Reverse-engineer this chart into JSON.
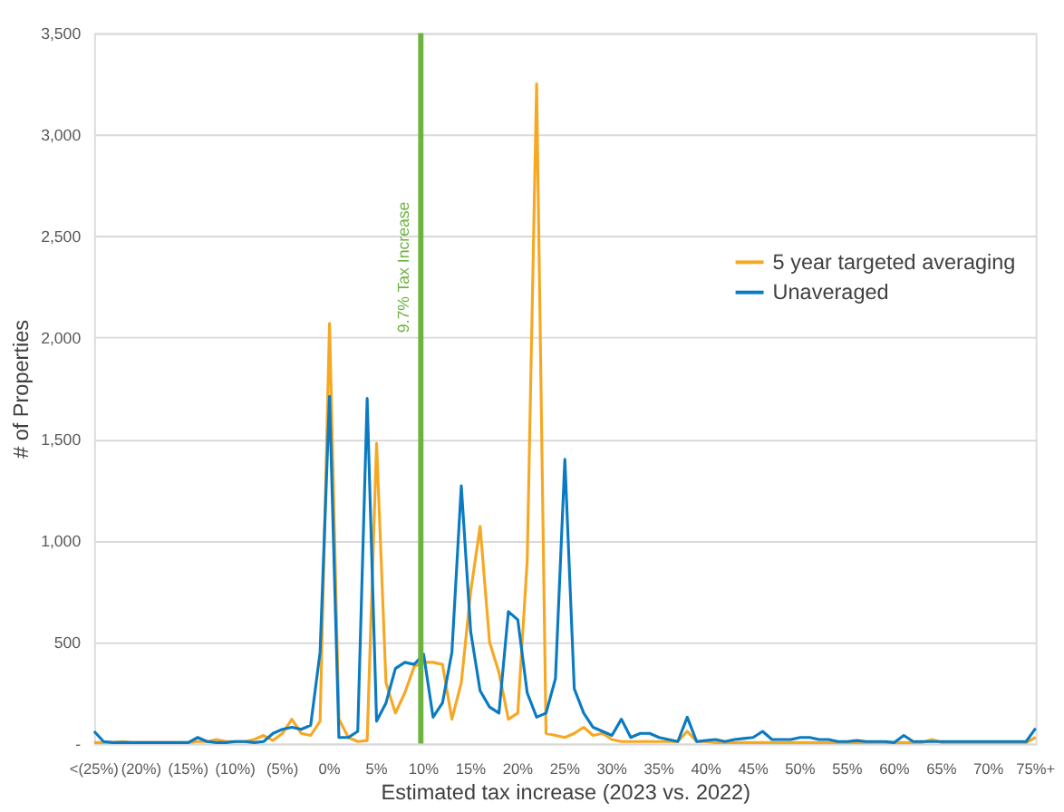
{
  "chart_data": {
    "type": "line",
    "xlabel": "Estimated tax increase (2023 vs. 2022)",
    "ylabel": "# of Properties",
    "x": [
      -25,
      -24,
      -23,
      -22,
      -21,
      -20,
      -19,
      -18,
      -17,
      -16,
      -15,
      -14,
      -13,
      -12,
      -11,
      -10,
      -9,
      -8,
      -7,
      -6,
      -5,
      -4,
      -3,
      -2,
      -1,
      0,
      1,
      2,
      3,
      4,
      5,
      6,
      7,
      8,
      9,
      10,
      11,
      12,
      13,
      14,
      15,
      16,
      17,
      18,
      19,
      20,
      21,
      22,
      23,
      24,
      25,
      26,
      27,
      28,
      29,
      30,
      31,
      32,
      33,
      34,
      35,
      36,
      37,
      38,
      39,
      40,
      41,
      42,
      43,
      44,
      45,
      46,
      47,
      48,
      49,
      50,
      51,
      52,
      53,
      54,
      55,
      56,
      57,
      58,
      59,
      60,
      61,
      62,
      63,
      64,
      65,
      66,
      67,
      68,
      69,
      70,
      71,
      72,
      73,
      74,
      75
    ],
    "series": [
      {
        "name": "5 year targeted averaging",
        "color": "#f7a823",
        "values": [
          5,
          5,
          5,
          10,
          5,
          5,
          5,
          5,
          5,
          5,
          5,
          10,
          10,
          20,
          10,
          10,
          10,
          20,
          40,
          15,
          50,
          120,
          50,
          40,
          110,
          2070,
          120,
          30,
          10,
          15,
          1480,
          300,
          150,
          250,
          380,
          400,
          400,
          390,
          120,
          300,
          750,
          1070,
          500,
          350,
          120,
          150,
          900,
          3250,
          50,
          40,
          30,
          50,
          80,
          40,
          50,
          20,
          10,
          10,
          10,
          10,
          10,
          10,
          10,
          60,
          10,
          10,
          5,
          5,
          5,
          5,
          5,
          5,
          5,
          5,
          5,
          5,
          5,
          5,
          5,
          5,
          5,
          5,
          5,
          5,
          5,
          5,
          5,
          5,
          5,
          20,
          5,
          5,
          5,
          5,
          5,
          5,
          5,
          5,
          5,
          5,
          30
        ]
      },
      {
        "name": "Unaveraged",
        "color": "#0a7bc2",
        "values": [
          60,
          10,
          5,
          5,
          5,
          5,
          5,
          5,
          5,
          5,
          5,
          30,
          10,
          5,
          5,
          10,
          10,
          5,
          10,
          50,
          70,
          80,
          70,
          90,
          450,
          1710,
          30,
          30,
          60,
          1700,
          110,
          200,
          370,
          400,
          390,
          440,
          130,
          200,
          450,
          1270,
          550,
          260,
          180,
          150,
          650,
          610,
          250,
          130,
          150,
          320,
          1400,
          270,
          150,
          80,
          60,
          40,
          120,
          30,
          50,
          50,
          30,
          20,
          10,
          130,
          10,
          15,
          20,
          10,
          20,
          25,
          30,
          60,
          20,
          20,
          20,
          30,
          30,
          20,
          20,
          10,
          10,
          15,
          10,
          10,
          10,
          5,
          40,
          10,
          10,
          10,
          10,
          10,
          10,
          10,
          10,
          10,
          10,
          10,
          10,
          10,
          75
        ]
      }
    ],
    "xlim": [
      -25,
      75
    ],
    "xticks": [
      {
        "value": -25,
        "label": "<(25%)"
      },
      {
        "value": -20,
        "label": "(20%)"
      },
      {
        "value": -15,
        "label": "(15%)"
      },
      {
        "value": -10,
        "label": "(10%)"
      },
      {
        "value": -5,
        "label": "(5%)"
      },
      {
        "value": 0,
        "label": "0%"
      },
      {
        "value": 5,
        "label": "5%"
      },
      {
        "value": 10,
        "label": "10%"
      },
      {
        "value": 15,
        "label": "15%"
      },
      {
        "value": 20,
        "label": "20%"
      },
      {
        "value": 25,
        "label": "25%"
      },
      {
        "value": 30,
        "label": "30%"
      },
      {
        "value": 35,
        "label": "35%"
      },
      {
        "value": 40,
        "label": "40%"
      },
      {
        "value": 45,
        "label": "45%"
      },
      {
        "value": 50,
        "label": "50%"
      },
      {
        "value": 55,
        "label": "55%"
      },
      {
        "value": 60,
        "label": "60%"
      },
      {
        "value": 65,
        "label": "65%"
      },
      {
        "value": 70,
        "label": "70%"
      },
      {
        "value": 75,
        "label": "75%+"
      }
    ],
    "ylim": [
      0,
      3500
    ],
    "yticks": [
      {
        "value": 0,
        "label": "-"
      },
      {
        "value": 500,
        "label": "500"
      },
      {
        "value": 1000,
        "label": "1,000"
      },
      {
        "value": 1500,
        "label": "1,500"
      },
      {
        "value": 2000,
        "label": "2,000"
      },
      {
        "value": 2500,
        "label": "2,500"
      },
      {
        "value": 3000,
        "label": "3,000"
      },
      {
        "value": 3500,
        "label": "3,500"
      }
    ],
    "ref_lines": [
      {
        "axis": "x",
        "value": 9.7,
        "label": "9.7% Tax Increase",
        "color": "#6cb33f"
      }
    ],
    "grid": "y",
    "legend": "right",
    "marker": "none",
    "line_style": "solid"
  }
}
